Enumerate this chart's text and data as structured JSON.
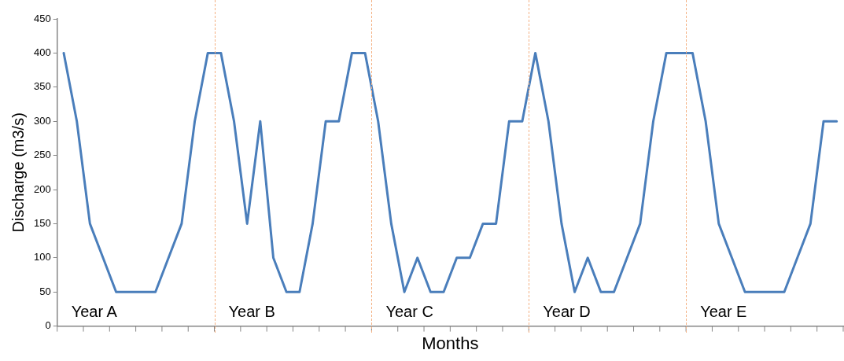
{
  "chart_data": {
    "type": "line",
    "xlabel": "Months",
    "ylabel": "Discharge (m3/s)",
    "categories": [
      null,
      null,
      null,
      null,
      null,
      null,
      null,
      null,
      null,
      null,
      null,
      null,
      null,
      null,
      null,
      null,
      null,
      null,
      null,
      null,
      null,
      null,
      null,
      null,
      null,
      null,
      null,
      null,
      null,
      null,
      null,
      null,
      null,
      null,
      null,
      null,
      null,
      null,
      null,
      null,
      null,
      null,
      null,
      null,
      null,
      null,
      null,
      null,
      null,
      null,
      null,
      null,
      null,
      null,
      null,
      null,
      null,
      null,
      null,
      null
    ],
    "series": [
      {
        "color": "#4a7ebb",
        "values": [
          400,
          300,
          150,
          100,
          50,
          50,
          50,
          50,
          100,
          150,
          300,
          400,
          400,
          300,
          150,
          300,
          100,
          50,
          50,
          150,
          300,
          300,
          400,
          400,
          300,
          150,
          50,
          100,
          50,
          50,
          100,
          100,
          150,
          150,
          300,
          300,
          400,
          300,
          150,
          50,
          100,
          50,
          50,
          100,
          150,
          300,
          400,
          400,
          400,
          300,
          150,
          100,
          50,
          50,
          50,
          50,
          100,
          150,
          300,
          300
        ]
      }
    ],
    "ylim": [
      0,
      450
    ],
    "yticks": [
      0,
      50,
      100,
      150,
      200,
      250,
      300,
      350,
      400,
      450
    ],
    "tick_labels": "y",
    "grid": false,
    "legend": false,
    "marker": "none",
    "line_style": "solid",
    "annotations": [
      "Year A",
      "Year B",
      "Year C",
      "Year D",
      "Year E"
    ]
  }
}
